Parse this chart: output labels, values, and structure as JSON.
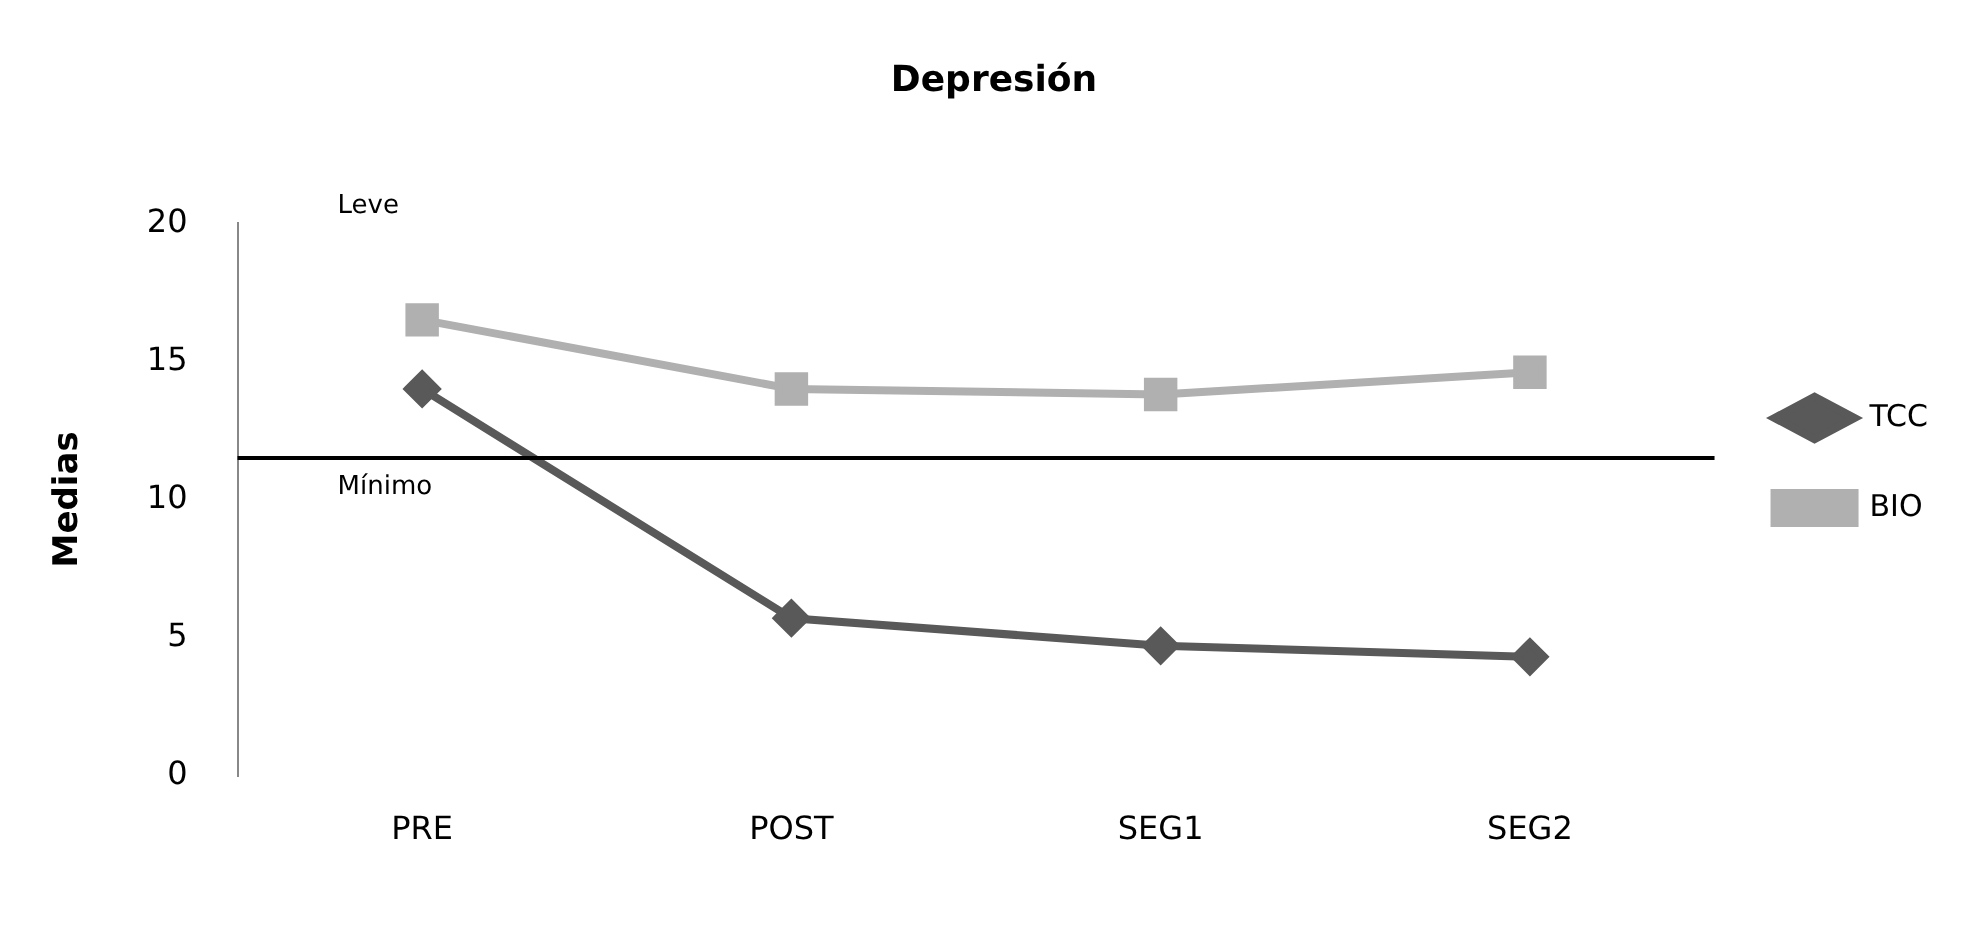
{
  "chart_data": {
    "type": "line",
    "title": "Depresión",
    "ylabel": "Medias",
    "categories": [
      "PRE",
      "POST",
      "SEG1",
      "SEG2"
    ],
    "series": [
      {
        "name": "TCC",
        "color": "#595959",
        "marker": "diamond",
        "values": [
          14,
          5.7,
          4.7,
          4.3
        ]
      },
      {
        "name": "BIO",
        "color": "#b0b0b0",
        "marker": "square",
        "values": [
          16.5,
          14,
          13.8,
          14.6
        ]
      }
    ],
    "ylim": [
      0,
      20
    ],
    "yticks": [
      0,
      5,
      10,
      15,
      20
    ],
    "grid": false,
    "legend": "right",
    "ref_lines": [
      {
        "axis": "y",
        "value": 11.5,
        "label": "Mínimo",
        "color": "#000000"
      }
    ],
    "annotations": [
      "Leve"
    ]
  }
}
